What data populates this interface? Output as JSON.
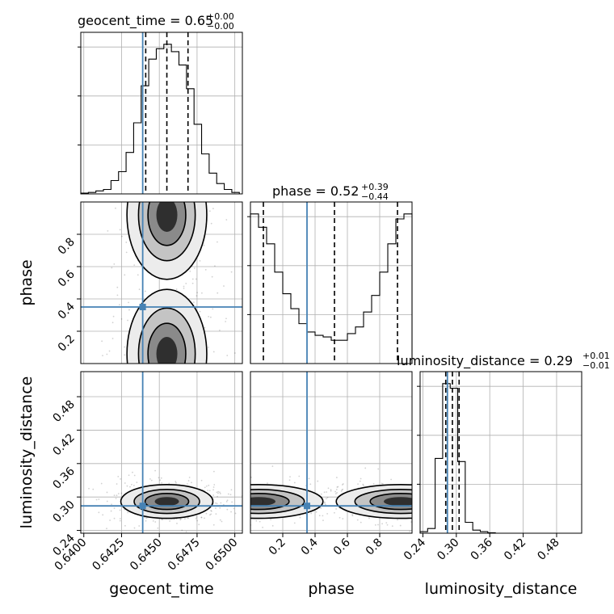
{
  "chart_data": [
    {
      "type": "histogram",
      "panel": "geocent_time-marginal",
      "title_param": "geocent_time",
      "title_median": "0.65",
      "title_plus": "+0.00",
      "title_minus": "−0.00",
      "xlim": [
        0.6398,
        0.6505
      ],
      "median": 0.6455,
      "quantiles": [
        0.6441,
        0.6469
      ],
      "truth": 0.6439,
      "bins": [
        0.6398,
        0.6403,
        0.6408,
        0.6413,
        0.6418,
        0.6423,
        0.6428,
        0.6433,
        0.6438,
        0.6443,
        0.6448,
        0.6453,
        0.6458,
        0.6463,
        0.6468,
        0.6473,
        0.6478,
        0.6483,
        0.6488,
        0.6493,
        0.6498,
        0.6503
      ],
      "values": [
        0.5,
        1,
        2,
        3,
        9,
        15,
        28,
        48,
        73,
        91,
        98,
        101,
        96,
        87,
        71,
        47,
        27,
        14,
        7,
        3,
        1
      ]
    },
    {
      "type": "histogram",
      "panel": "phase-marginal",
      "title_param": "phase",
      "title_median": "0.52",
      "title_plus": "+0.39",
      "title_minus": "−0.44",
      "xlim": [
        0.0,
        1.0
      ],
      "median": 0.52,
      "quantiles": [
        0.08,
        0.91
      ],
      "truth": 0.35,
      "bins": [
        0.0,
        0.05,
        0.1,
        0.15,
        0.2,
        0.25,
        0.3,
        0.35,
        0.4,
        0.45,
        0.5,
        0.55,
        0.6,
        0.65,
        0.7,
        0.75,
        0.8,
        0.85,
        0.9,
        0.95,
        1.0
      ],
      "values": [
        90,
        82,
        72,
        55,
        42,
        33,
        24,
        19,
        17,
        16,
        14,
        14,
        18,
        22,
        31,
        41,
        55,
        72,
        87,
        90
      ]
    },
    {
      "type": "histogram",
      "panel": "luminosity_distance-marginal",
      "title_param": "luminosity_distance",
      "title_median": "0.29",
      "title_plus": "+0.01",
      "title_minus": "−0.01",
      "xlim": [
        0.235,
        0.525
      ],
      "median": 0.293,
      "quantiles": [
        0.281,
        0.305
      ],
      "truth": 0.284,
      "bins": [
        0.235,
        0.2485,
        0.262,
        0.2755,
        0.289,
        0.3025,
        0.316,
        0.3295,
        0.343,
        0.3565,
        0.37
      ],
      "values": [
        1,
        3,
        48,
        96,
        93,
        46,
        7,
        2,
        1,
        0.3
      ]
    },
    {
      "type": "scatter",
      "panel": "phase-vs-geocent_time",
      "x_param": "geocent_time",
      "y_param": "phase",
      "xlim": [
        0.6398,
        0.6505
      ],
      "ylim": [
        0.0,
        1.0
      ],
      "truth": [
        0.6439,
        0.35
      ],
      "modes": [
        [
          0.6455,
          0.92
        ],
        [
          0.6455,
          0.06
        ]
      ]
    },
    {
      "type": "scatter",
      "panel": "luminosity_distance-vs-geocent_time",
      "x_param": "geocent_time",
      "y_param": "luminosity_distance",
      "xlim": [
        0.6398,
        0.6505
      ],
      "ylim": [
        0.235,
        0.525
      ],
      "truth": [
        0.6439,
        0.284
      ],
      "modes": [
        [
          0.6455,
          0.292
        ]
      ]
    },
    {
      "type": "scatter",
      "panel": "luminosity_distance-vs-phase",
      "x_param": "phase",
      "y_param": "luminosity_distance",
      "xlim": [
        0.0,
        1.0
      ],
      "ylim": [
        0.235,
        0.525
      ],
      "truth": [
        0.35,
        0.284
      ],
      "modes": [
        [
          0.05,
          0.292
        ],
        [
          0.93,
          0.292
        ]
      ]
    }
  ],
  "axes": {
    "x_ticks_time": [
      "0.6400",
      "0.6425",
      "0.6450",
      "0.6475",
      "0.6500"
    ],
    "x_ticks_phase": [
      "0.2",
      "0.4",
      "0.6",
      "0.8"
    ],
    "x_ticks_dist": [
      "0.24",
      "0.30",
      "0.36",
      "0.42",
      "0.48"
    ],
    "y_ticks_phase": [
      "0.2",
      "0.4",
      "0.6",
      "0.8"
    ],
    "y_ticks_dist": [
      "0.24",
      "0.30",
      "0.36",
      "0.42",
      "0.48"
    ],
    "x_label_time": "geocent_time",
    "x_label_phase": "phase",
    "x_label_dist": "luminosity_distance",
    "y_label_phase": "phase",
    "y_label_dist": "luminosity_distance"
  },
  "colors": {
    "truth": "#4682b4",
    "hist": "#000000",
    "grid": "#b0b0b0"
  }
}
